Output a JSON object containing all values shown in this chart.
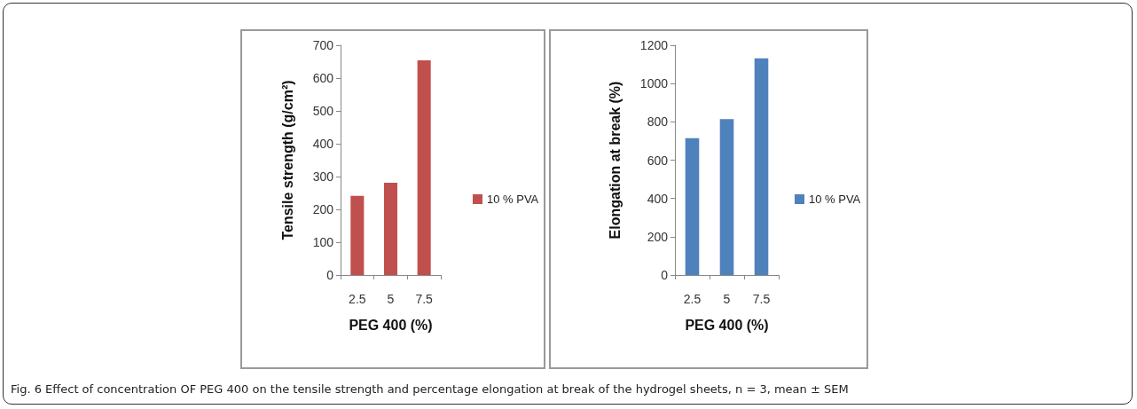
{
  "chart_data": [
    {
      "type": "bar",
      "xlabel": "PEG 400 (%)",
      "ylabel": "Tensile strength (g/cm²)",
      "categories": [
        "2.5",
        "5",
        "7.5"
      ],
      "series": [
        {
          "name": "10 % PVA",
          "color": "#c0504d",
          "values": [
            241,
            281,
            654
          ]
        }
      ],
      "ylim": [
        0,
        700
      ],
      "yticks": [
        0,
        100,
        200,
        300,
        400,
        500,
        600,
        700
      ],
      "grid": false,
      "legend": "right",
      "annotations": [
        "Fig. 6 Effect of concentration OF PEG 400 on the tensile strength and percentage elongation at break of the hydrogel sheets, n = 3, mean ± SEM"
      ]
    },
    {
      "type": "bar",
      "xlabel": "PEG 400 (%)",
      "ylabel": "Elongation at break (%)",
      "categories": [
        "2.5",
        "5",
        "7.5"
      ],
      "series": [
        {
          "name": "10 % PVA",
          "color": "#4f81bd",
          "values": [
            715,
            814,
            1132
          ]
        }
      ],
      "ylim": [
        0,
        1200
      ],
      "yticks": [
        0,
        200,
        400,
        600,
        800,
        1000,
        1200
      ],
      "grid": false,
      "legend": "right"
    }
  ]
}
